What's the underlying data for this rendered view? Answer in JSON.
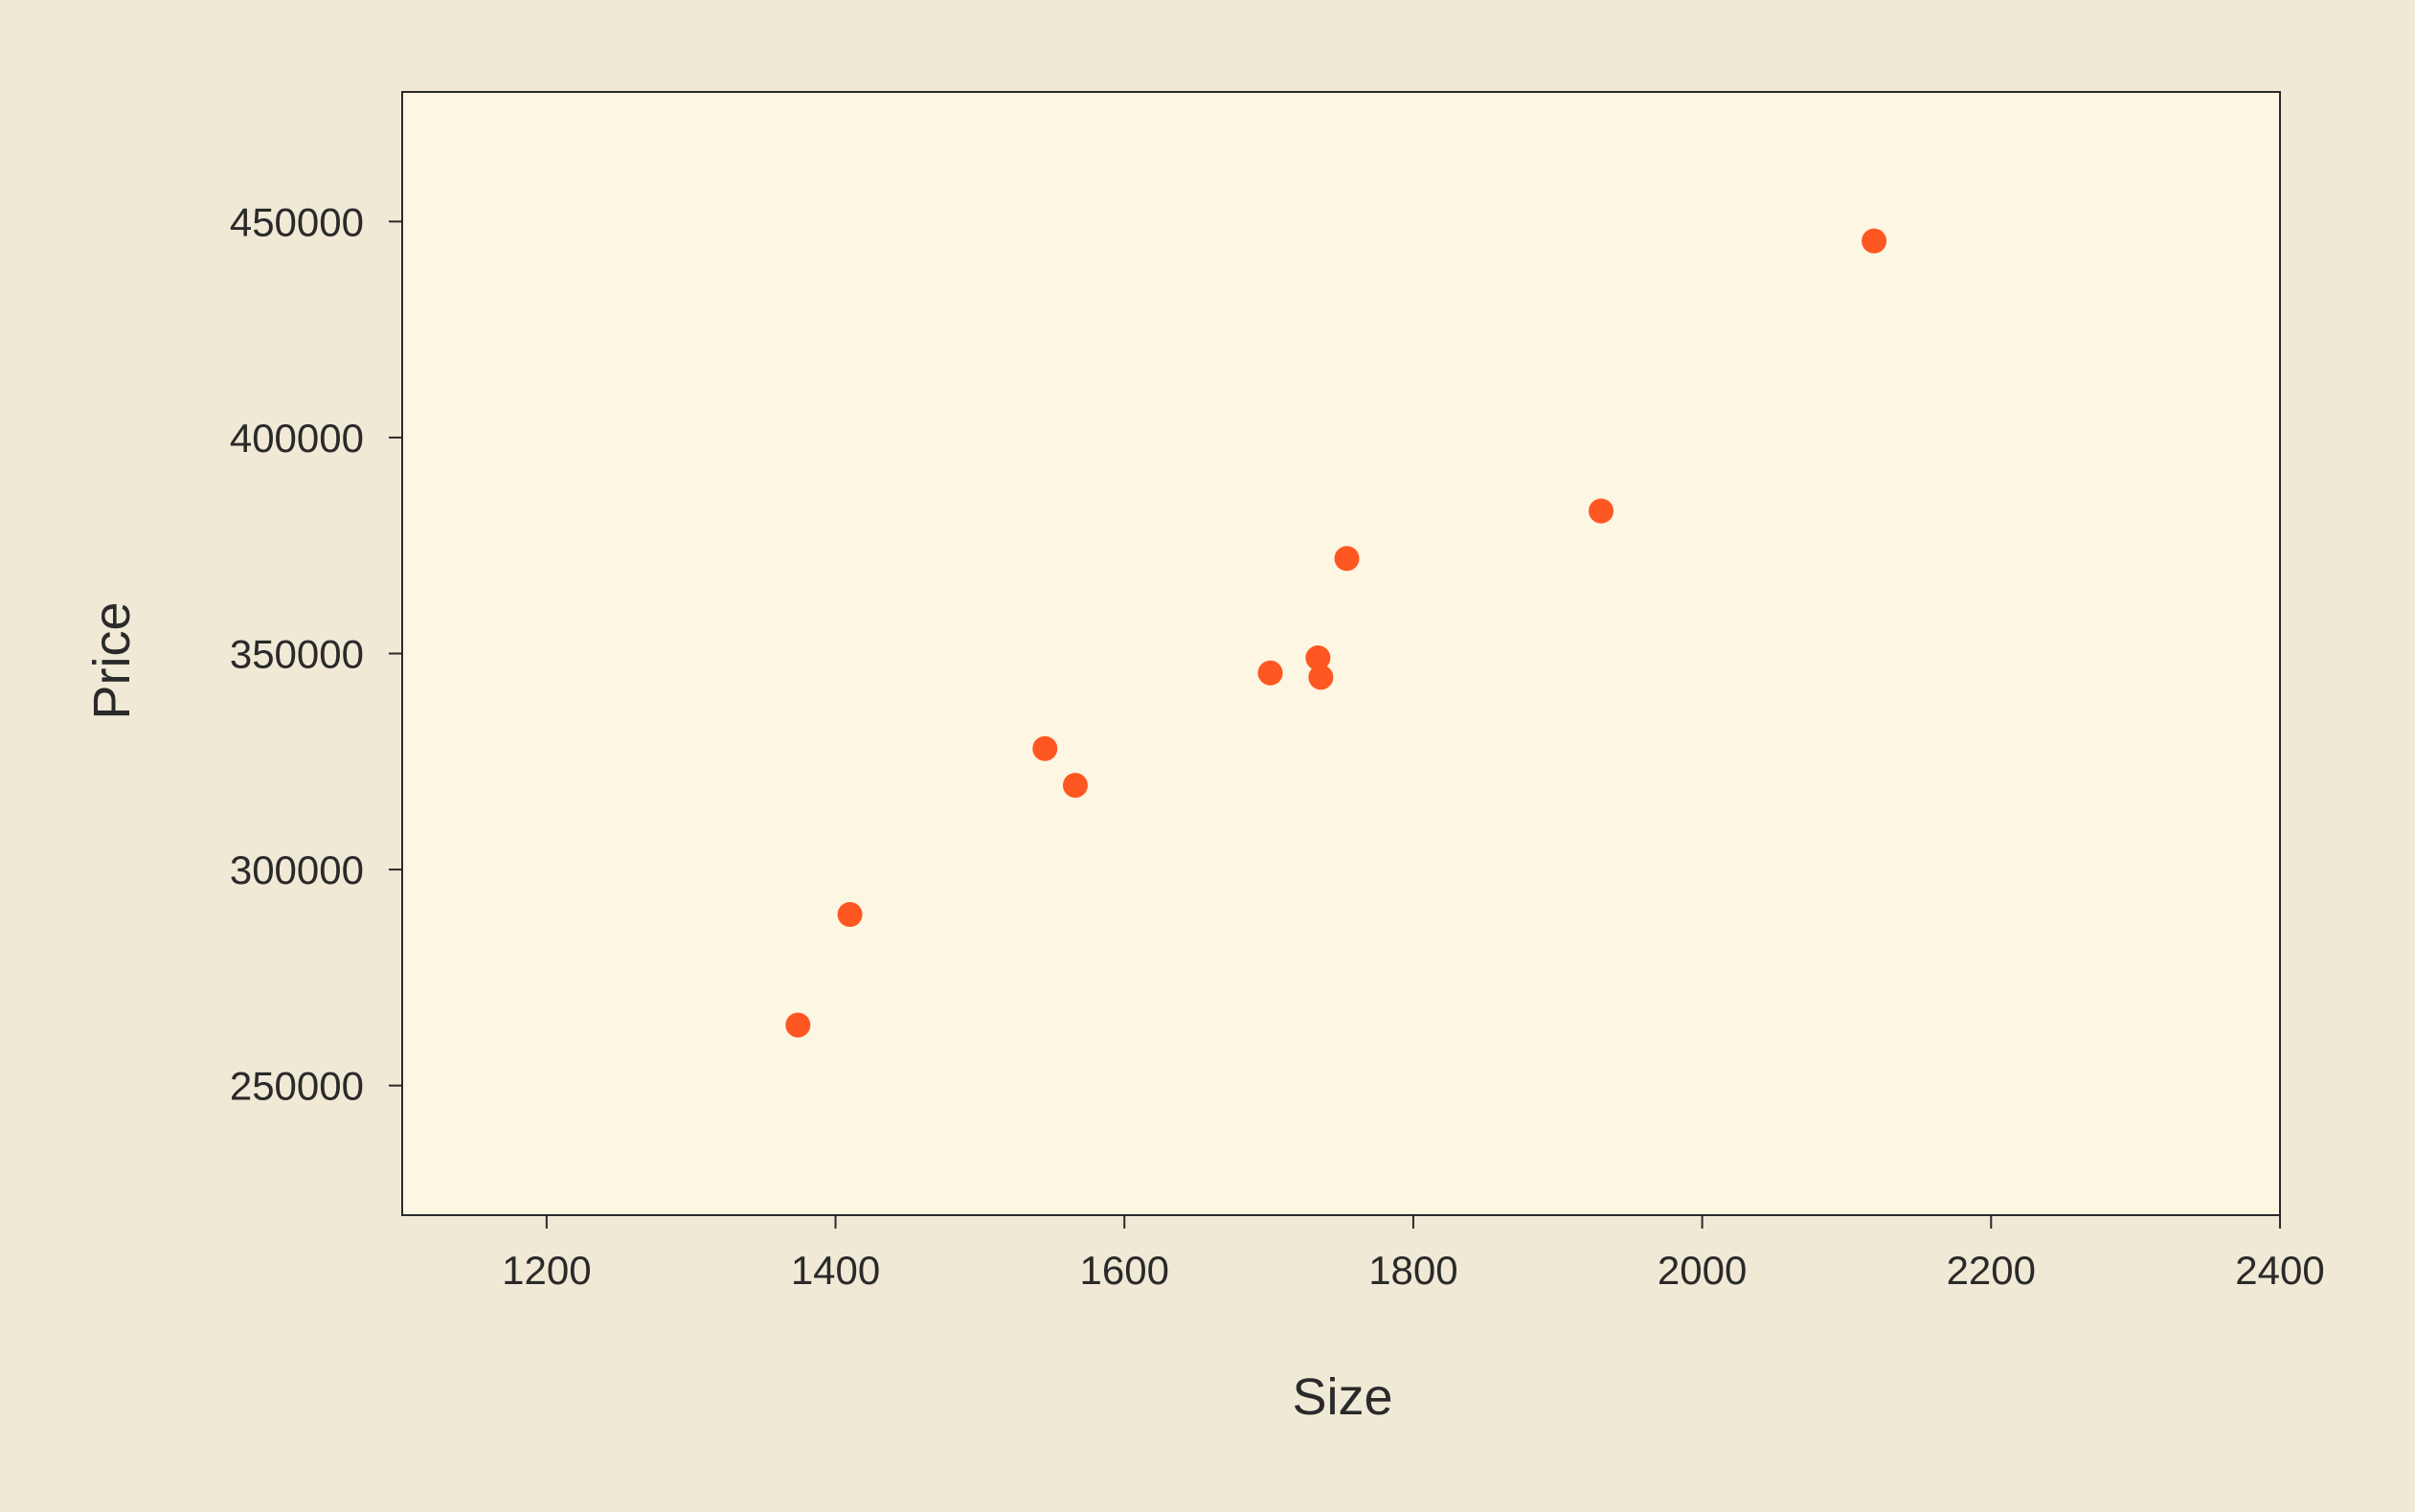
{
  "chart_data": {
    "type": "scatter",
    "title": "",
    "xlabel": "Size",
    "ylabel": "Price",
    "xlim": [
      1100,
      2400
    ],
    "ylim": [
      220000,
      480000
    ],
    "xticks": [
      1200,
      1400,
      1600,
      1800,
      2000,
      2200,
      2400
    ],
    "yticks": [
      250000,
      300000,
      350000,
      400000,
      450000
    ],
    "grid": false,
    "legend": "none",
    "colors": {
      "background": "#f0e9d6",
      "plot_background": "#fdf6e3",
      "point": "#ff5722",
      "axis": "#2a2a2a"
    },
    "series": [
      {
        "points": [
          {
            "x": 1374,
            "y": 264000
          },
          {
            "x": 1410,
            "y": 289600
          },
          {
            "x": 1545,
            "y": 328000
          },
          {
            "x": 1566,
            "y": 319500
          },
          {
            "x": 1701,
            "y": 345500
          },
          {
            "x": 1734,
            "y": 349000
          },
          {
            "x": 1736,
            "y": 344500
          },
          {
            "x": 1754,
            "y": 372000
          },
          {
            "x": 1930,
            "y": 383000
          },
          {
            "x": 2119,
            "y": 445500
          }
        ]
      }
    ]
  }
}
